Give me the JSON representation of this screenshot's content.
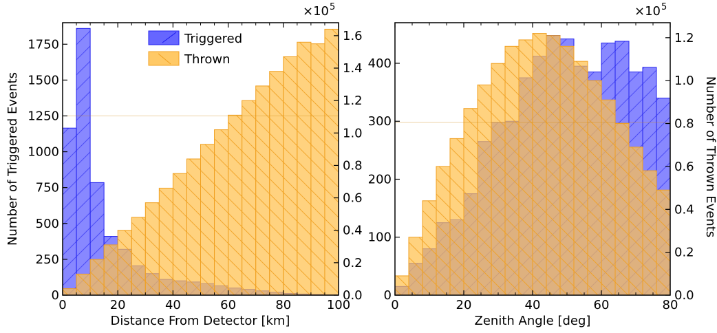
{
  "chart_data": [
    {
      "type": "bar",
      "xlabel": "Distance From Detector [km]",
      "ylabel_left": "Number of Triggered Events",
      "ylabel_right": "",
      "right_axis_multiplier": "×10",
      "right_axis_exponent": "5",
      "xlim": [
        0,
        100
      ],
      "ylim_left": [
        0,
        1900
      ],
      "ylim_right": [
        0,
        1.68
      ],
      "x_ticks": [
        "0",
        "20",
        "40",
        "60",
        "80",
        "100"
      ],
      "y_ticks_left": [
        "0",
        "250",
        "500",
        "750",
        "1000",
        "1250",
        "1500",
        "1750"
      ],
      "y_ticks_right": [
        "0.0",
        "0.2",
        "0.4",
        "0.6",
        "0.8",
        "1.0",
        "1.2",
        "1.4",
        "1.6"
      ],
      "legend": {
        "placement": "top-center",
        "entries": [
          "Triggered",
          "Thrown"
        ]
      },
      "bin_edges": [
        0,
        5,
        10,
        15,
        20,
        25,
        30,
        35,
        40,
        45,
        50,
        55,
        60,
        65,
        70,
        75,
        80,
        85,
        90,
        95,
        100
      ],
      "series": [
        {
          "name": "Triggered",
          "axis": "left",
          "color": "#3333ff",
          "values": [
            1165,
            1860,
            785,
            410,
            320,
            205,
            150,
            110,
            100,
            92,
            80,
            65,
            50,
            40,
            30,
            20,
            12,
            8,
            5,
            3
          ]
        },
        {
          "name": "Thrown",
          "axis": "right",
          "color": "#ffa500",
          "values": [
            0.04,
            0.13,
            0.22,
            0.31,
            0.4,
            0.48,
            0.57,
            0.66,
            0.75,
            0.84,
            0.93,
            1.02,
            1.11,
            1.2,
            1.29,
            1.38,
            1.47,
            1.56,
            1.55,
            1.64
          ]
        }
      ]
    },
    {
      "type": "bar",
      "xlabel": "Zenith Angle [deg]",
      "ylabel_left": "",
      "ylabel_right": "Number of Thrown Events",
      "right_axis_multiplier": "×10",
      "right_axis_exponent": "5",
      "xlim": [
        0,
        80
      ],
      "ylim_left": [
        0,
        470
      ],
      "ylim_right": [
        0,
        1.27
      ],
      "x_ticks": [
        "0",
        "20",
        "40",
        "60",
        "80"
      ],
      "y_ticks_left": [
        "0",
        "100",
        "200",
        "300",
        "400"
      ],
      "y_ticks_right": [
        "0.0",
        "0.2",
        "0.4",
        "0.6",
        "0.8",
        "1.0",
        "1.2"
      ],
      "legend": null,
      "bin_edges": [
        0,
        4,
        8,
        12,
        16,
        20,
        24,
        28,
        32,
        36,
        40,
        44,
        48,
        52,
        56,
        60,
        64,
        68,
        72,
        76,
        80
      ],
      "series": [
        {
          "name": "Triggered",
          "axis": "left",
          "color": "#3333ff",
          "values": [
            15,
            55,
            80,
            125,
            130,
            175,
            265,
            298,
            300,
            375,
            412,
            448,
            442,
            395,
            385,
            435,
            438,
            385,
            393,
            340
          ]
        },
        {
          "name": "Thrown",
          "axis": "right",
          "color": "#ffa500",
          "values": [
            0.09,
            0.27,
            0.44,
            0.6,
            0.73,
            0.87,
            0.98,
            1.08,
            1.16,
            1.19,
            1.22,
            1.21,
            1.16,
            1.09,
            1.0,
            0.91,
            0.8,
            0.69,
            0.58,
            0.49
          ]
        }
      ]
    }
  ]
}
